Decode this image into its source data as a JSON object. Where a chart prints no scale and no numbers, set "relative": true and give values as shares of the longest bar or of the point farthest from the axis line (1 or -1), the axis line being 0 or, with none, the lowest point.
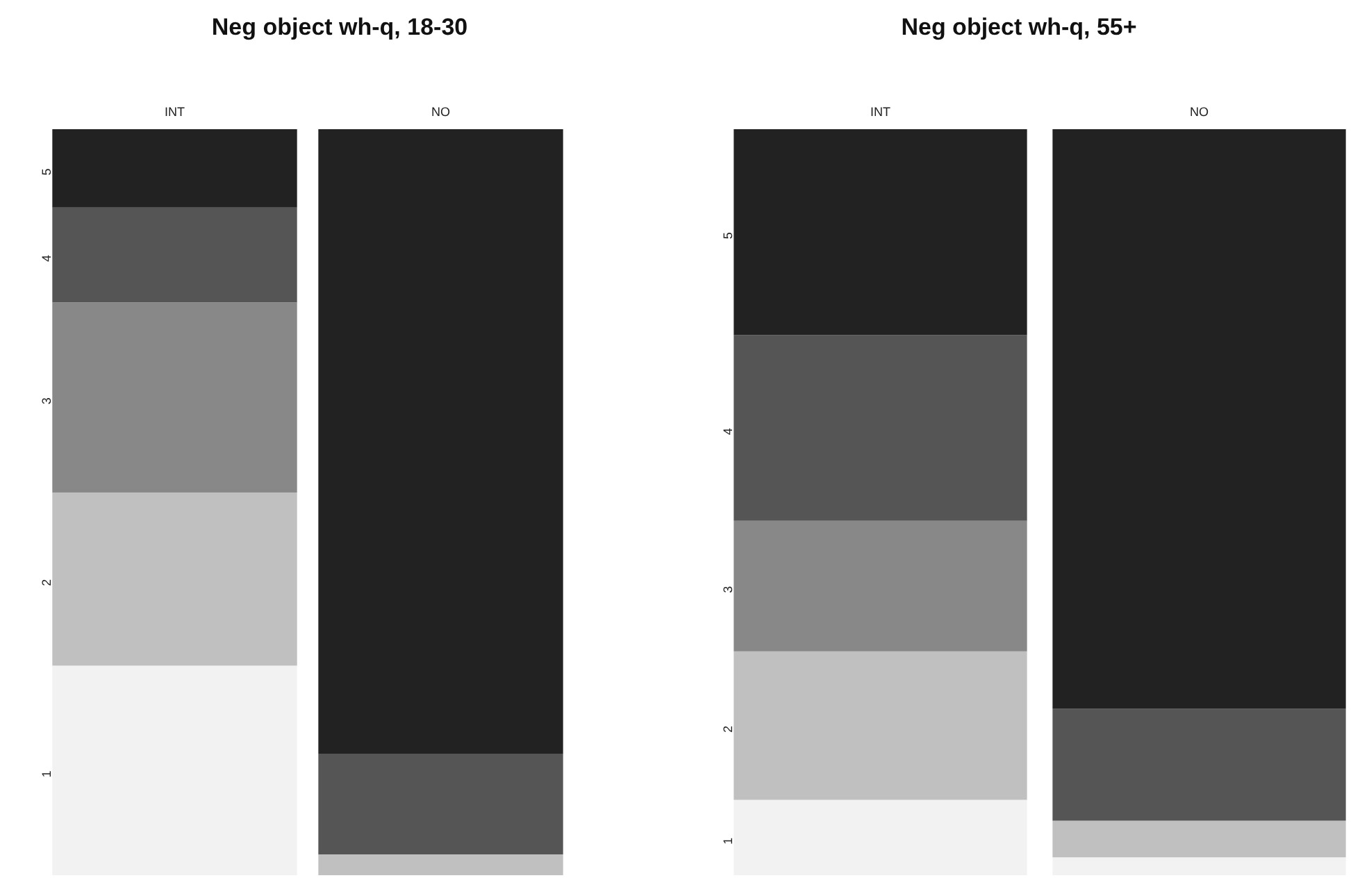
{
  "chart_data": [
    {
      "type": "bar",
      "title": "Neg object wh-q, 18-30",
      "categories": [
        "INT",
        "NO"
      ],
      "stacked": true,
      "relative": true,
      "legend": false,
      "series": [
        {
          "name": "1",
          "color": "#f2f2f2",
          "values": [
            0.281,
            0
          ]
        },
        {
          "name": "2",
          "color": "#c0c0c0",
          "values": [
            0.232,
            0.028
          ]
        },
        {
          "name": "3",
          "color": "#888888",
          "values": [
            0.255,
            0
          ]
        },
        {
          "name": "4",
          "color": "#555555",
          "values": [
            0.127,
            0.135
          ]
        },
        {
          "name": "5",
          "color": "#222222",
          "values": [
            0.105,
            0.837
          ]
        }
      ]
    },
    {
      "type": "bar",
      "title": "Neg object wh-q, 55+",
      "categories": [
        "INT",
        "NO"
      ],
      "stacked": true,
      "relative": true,
      "legend": false,
      "series": [
        {
          "name": "1",
          "color": "#f2f2f2",
          "values": [
            0.101,
            0.024
          ]
        },
        {
          "name": "2",
          "color": "#c0c0c0",
          "values": [
            0.199,
            0.049
          ]
        },
        {
          "name": "3",
          "color": "#888888",
          "values": [
            0.175,
            0
          ]
        },
        {
          "name": "4",
          "color": "#555555",
          "values": [
            0.249,
            0.15
          ]
        },
        {
          "name": "5",
          "color": "#222222",
          "values": [
            0.276,
            0.777
          ]
        }
      ]
    }
  ]
}
